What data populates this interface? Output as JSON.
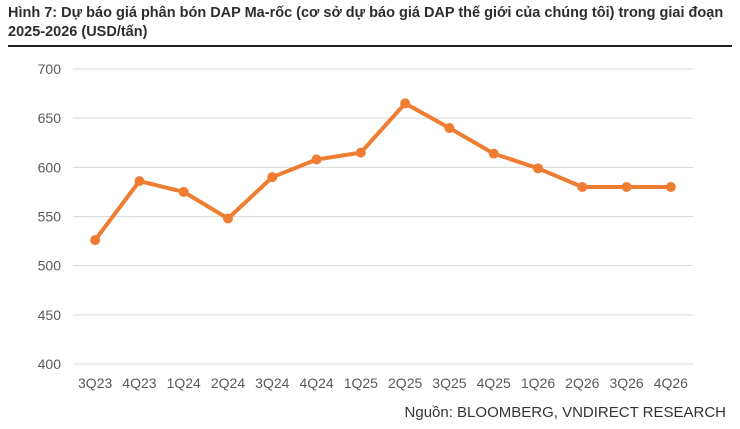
{
  "figure": {
    "title": "Hình 7: Dự báo giá phân bón DAP Ma-rốc (cơ sở dự báo giá DAP thế giới của chúng tôi) trong giai đoạn 2025-2026 (USD/tấn)",
    "source": "Nguồn: BLOOMBERG, VNDIRECT RESEARCH"
  },
  "chart_data": {
    "type": "line",
    "title": "Hình 7: Dự báo giá phân bón DAP Ma-rốc (cơ sở dự báo giá DAP thế giới của chúng tôi) trong giai đoạn 2025-2026 (USD/tấn)",
    "xlabel": "",
    "ylabel": "",
    "categories": [
      "3Q23",
      "4Q23",
      "1Q24",
      "2Q24",
      "3Q24",
      "4Q24",
      "1Q25",
      "2Q25",
      "3Q25",
      "4Q25",
      "1Q26",
      "2Q26",
      "3Q26",
      "4Q26"
    ],
    "series": [
      {
        "values": [
          526,
          586,
          575,
          548,
          590,
          608,
          615,
          665,
          640,
          614,
          599,
          580,
          580,
          580
        ]
      }
    ],
    "ylim": [
      400,
      700
    ],
    "yticks": [
      400,
      450,
      500,
      550,
      600,
      650,
      700
    ],
    "grid": true,
    "legend": "none",
    "colors": {
      "line": "#ee7d31",
      "grid": "#d9d9d9",
      "tick_text": "#595959"
    }
  }
}
